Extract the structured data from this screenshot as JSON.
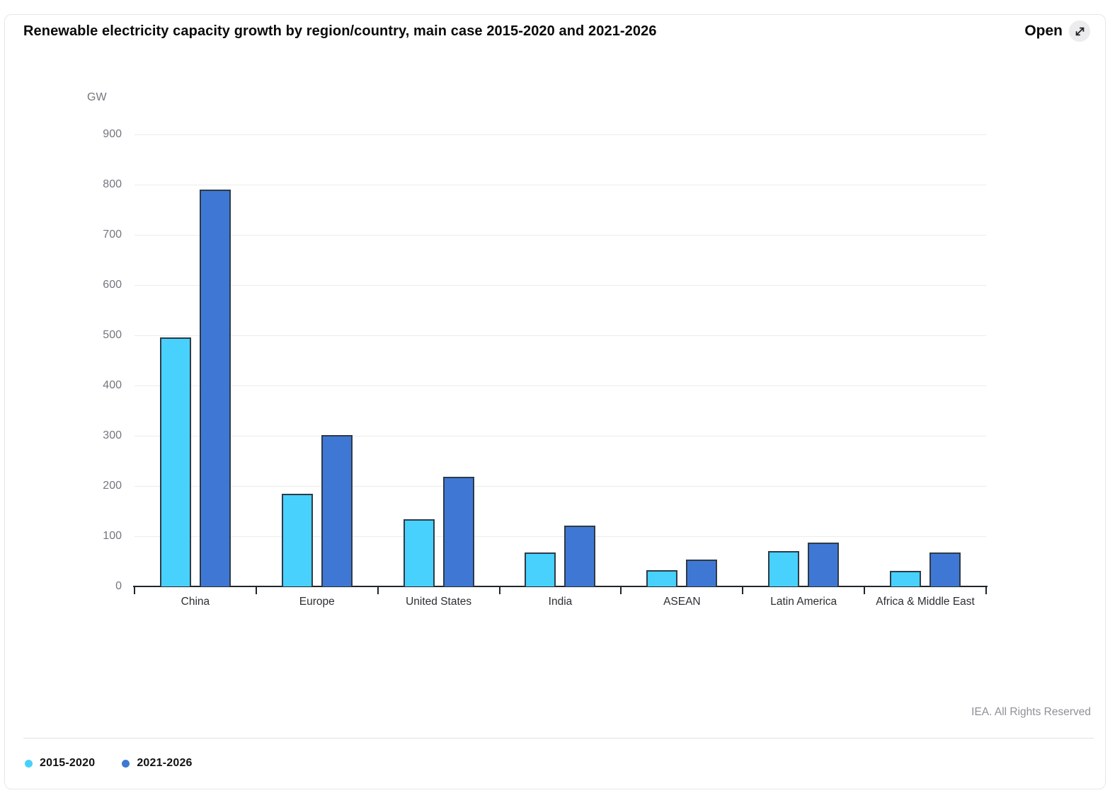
{
  "header": {
    "title": "Renewable electricity capacity growth by region/country, main case 2015-2020 and 2021-2026",
    "open_label": "Open",
    "open_icon": "expand-arrow-icon"
  },
  "chart_data": {
    "type": "bar",
    "title": "Renewable electricity capacity growth by region/country, main case 2015-2020 and 2021-2026",
    "unit_label": "GW",
    "xlabel": "",
    "ylabel": "GW",
    "categories": [
      "China",
      "Europe",
      "United States",
      "India",
      "ASEAN",
      "Latin America",
      "Africa & Middle East"
    ],
    "series": [
      {
        "name": "2015-2020",
        "color": "#47d1fc",
        "values": [
          496,
          185,
          134,
          67,
          33,
          71,
          31
        ]
      },
      {
        "name": "2021-2026",
        "color": "#3f78d4",
        "values": [
          790,
          302,
          219,
          121,
          54,
          88,
          67
        ]
      }
    ],
    "ylim": [
      0,
      900
    ],
    "yticks": [
      0,
      100,
      200,
      300,
      400,
      500,
      600,
      700,
      800,
      900
    ],
    "grid": true,
    "legend_position": "bottom-left"
  },
  "footer": {
    "copyright": "IEA. All Rights Reserved"
  },
  "colors": {
    "bar_border": "#2e3b47",
    "axis": "#20262c",
    "gridline": "#ececec",
    "accent_light": "#47d1fc",
    "accent_dark": "#3f78d4"
  }
}
